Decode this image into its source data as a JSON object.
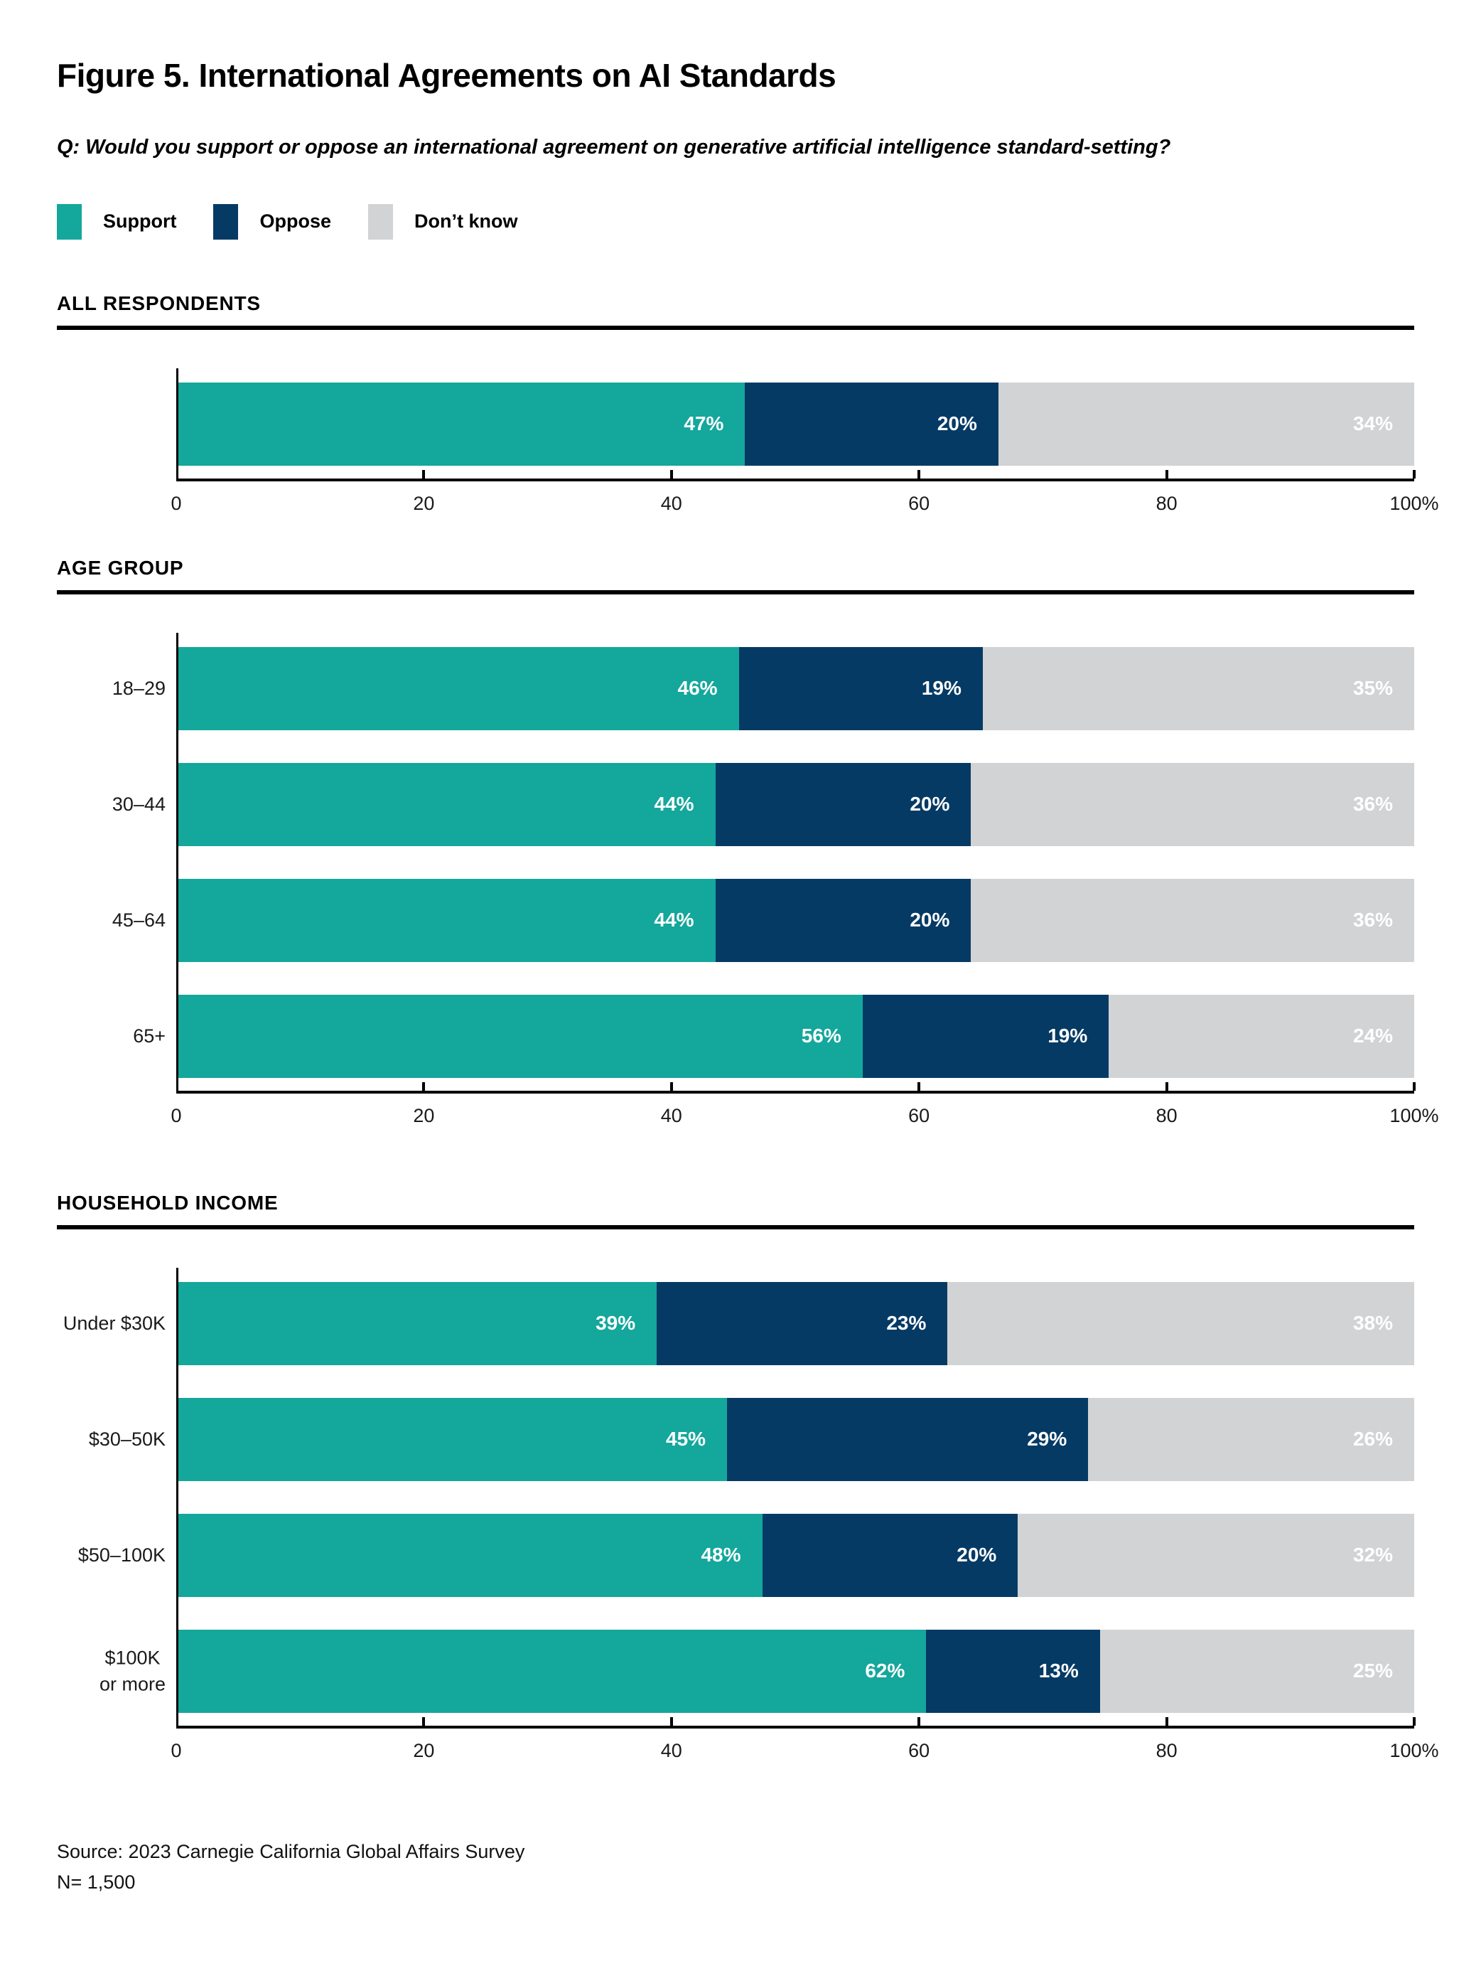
{
  "title": "Figure 5. International Agreements on AI Standards",
  "question": "Q: Would you support or oppose an international agreement on generative artificial intelligence standard-setting?",
  "legend": [
    {
      "label": "Support",
      "color": "#14A79C"
    },
    {
      "label": "Oppose",
      "color": "#053A65"
    },
    {
      "label": "Don’t know",
      "color": "#D1D3D4"
    }
  ],
  "colors": {
    "support": "#14A79C",
    "oppose": "#053A65",
    "dont_know": "#D1D3D4",
    "text": "#000000",
    "rule": "#000000"
  },
  "axis": {
    "ticks": [
      {
        "label": "0",
        "pos": 0
      },
      {
        "label": "20",
        "pos": 20
      },
      {
        "label": "40",
        "pos": 40
      },
      {
        "label": "60",
        "pos": 60
      },
      {
        "label": "80",
        "pos": 80
      },
      {
        "label": "100%",
        "pos": 100
      }
    ],
    "range": [
      0,
      100
    ]
  },
  "chart_data": [
    {
      "type": "bar",
      "orientation": "horizontal",
      "stacked": true,
      "title": "ALL RESPONDENTS",
      "categories": [
        ""
      ],
      "series": [
        {
          "name": "Support",
          "color": "#14A79C",
          "values": [
            47
          ]
        },
        {
          "name": "Oppose",
          "color": "#053A65",
          "values": [
            20
          ]
        },
        {
          "name": "Don’t know",
          "color": "#D1D3D4",
          "values": [
            34
          ]
        }
      ],
      "xlim": [
        0,
        100
      ],
      "xticklabels": [
        "0",
        "20",
        "40",
        "60",
        "80",
        "100%"
      ],
      "value_label_format": "{v}%",
      "grid": false,
      "legend_position": "top"
    },
    {
      "type": "bar",
      "orientation": "horizontal",
      "stacked": true,
      "title": "AGE GROUP",
      "categories": [
        "18–29",
        "30–44",
        "45–64",
        "65+"
      ],
      "series": [
        {
          "name": "Support",
          "color": "#14A79C",
          "values": [
            46,
            44,
            44,
            56
          ]
        },
        {
          "name": "Oppose",
          "color": "#053A65",
          "values": [
            19,
            20,
            20,
            19
          ]
        },
        {
          "name": "Don’t know",
          "color": "#D1D3D4",
          "values": [
            35,
            36,
            36,
            24
          ]
        }
      ],
      "xlim": [
        0,
        100
      ],
      "xticklabels": [
        "0",
        "20",
        "40",
        "60",
        "80",
        "100%"
      ],
      "value_label_format": "{v}%",
      "grid": false,
      "legend_position": "top"
    },
    {
      "type": "bar",
      "orientation": "horizontal",
      "stacked": true,
      "title": "HOUSEHOLD INCOME",
      "categories": [
        "Under $30K",
        "$30–50K",
        "$50–100K",
        "$100K\nor more"
      ],
      "series": [
        {
          "name": "Support",
          "color": "#14A79C",
          "values": [
            39,
            45,
            48,
            62
          ]
        },
        {
          "name": "Oppose",
          "color": "#053A65",
          "values": [
            23,
            29,
            20,
            13
          ]
        },
        {
          "name": "Don’t know",
          "color": "#D1D3D4",
          "values": [
            38,
            26,
            32,
            25
          ]
        }
      ],
      "xlim": [
        0,
        100
      ],
      "xticklabels": [
        "0",
        "20",
        "40",
        "60",
        "80",
        "100%"
      ],
      "value_label_format": "{v}%",
      "grid": false,
      "legend_position": "top"
    }
  ],
  "source": {
    "line1": "Source: 2023 Carnegie California Global Affairs Survey",
    "line2": "N= 1,500"
  }
}
